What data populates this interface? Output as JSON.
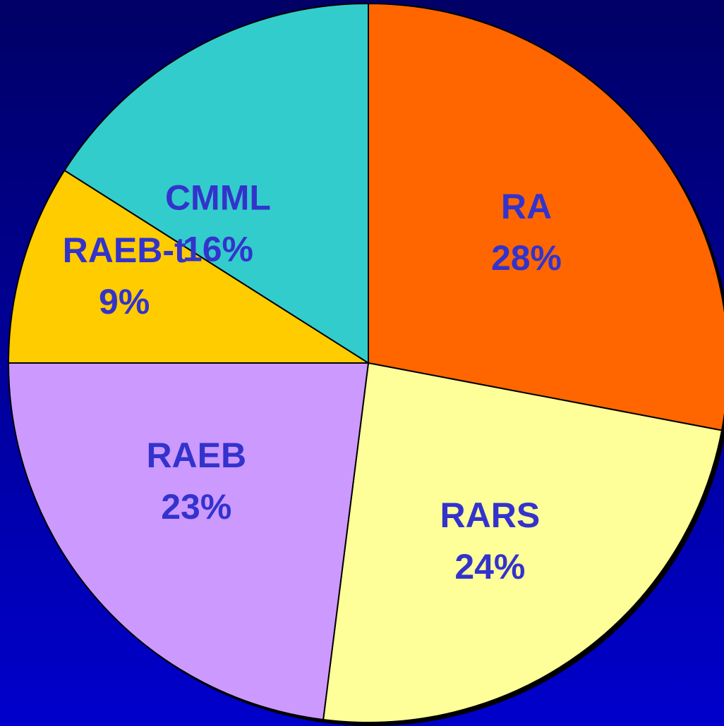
{
  "chart_data": {
    "type": "pie",
    "categories": [
      "RA",
      "RARS",
      "RAEB",
      "RAEB-t",
      "CMML"
    ],
    "values": [
      28,
      24,
      23,
      9,
      16
    ],
    "value_labels": [
      "28%",
      "24%",
      "23%",
      "9%",
      "16%"
    ],
    "colors": [
      "#ff6600",
      "#ffff99",
      "#cc99ff",
      "#ffcc00",
      "#33cccc"
    ],
    "start_angle": 0,
    "direction": "clockwise"
  }
}
